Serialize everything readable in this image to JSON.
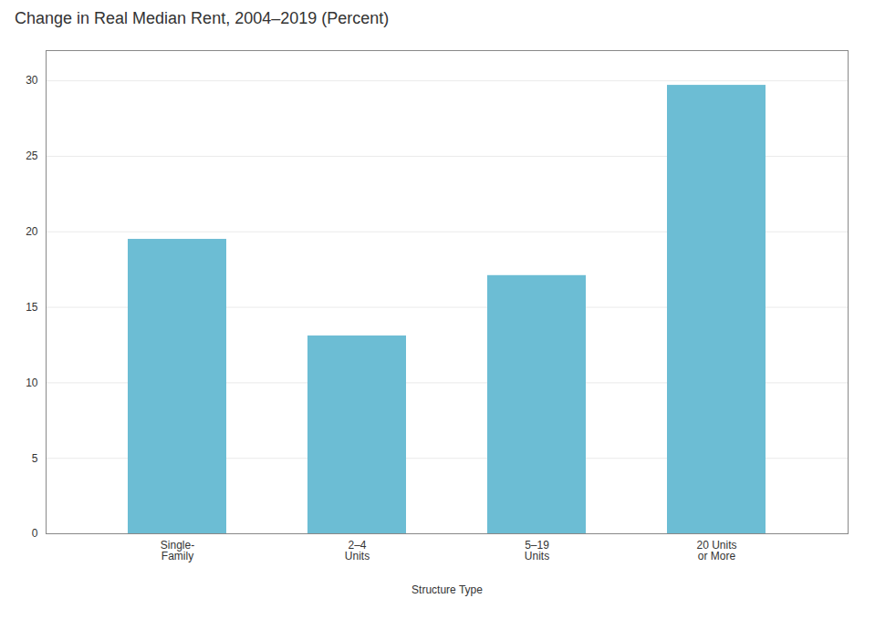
{
  "chart_data": {
    "type": "bar",
    "title": "Change in Real Median Rent, 2004–2019 (Percent)",
    "categories": [
      "Single-\nFamily",
      "2–4\nUnits",
      "5–19\nUnits",
      "20 Units\nor More"
    ],
    "values": [
      19.5,
      13.1,
      17.1,
      29.7
    ],
    "color": "#6cbdd4",
    "xlabel": "Structure Type",
    "ylim": [
      0,
      32
    ],
    "yticks": [
      0,
      5,
      10,
      15,
      20,
      25,
      30
    ],
    "grid": true
  }
}
